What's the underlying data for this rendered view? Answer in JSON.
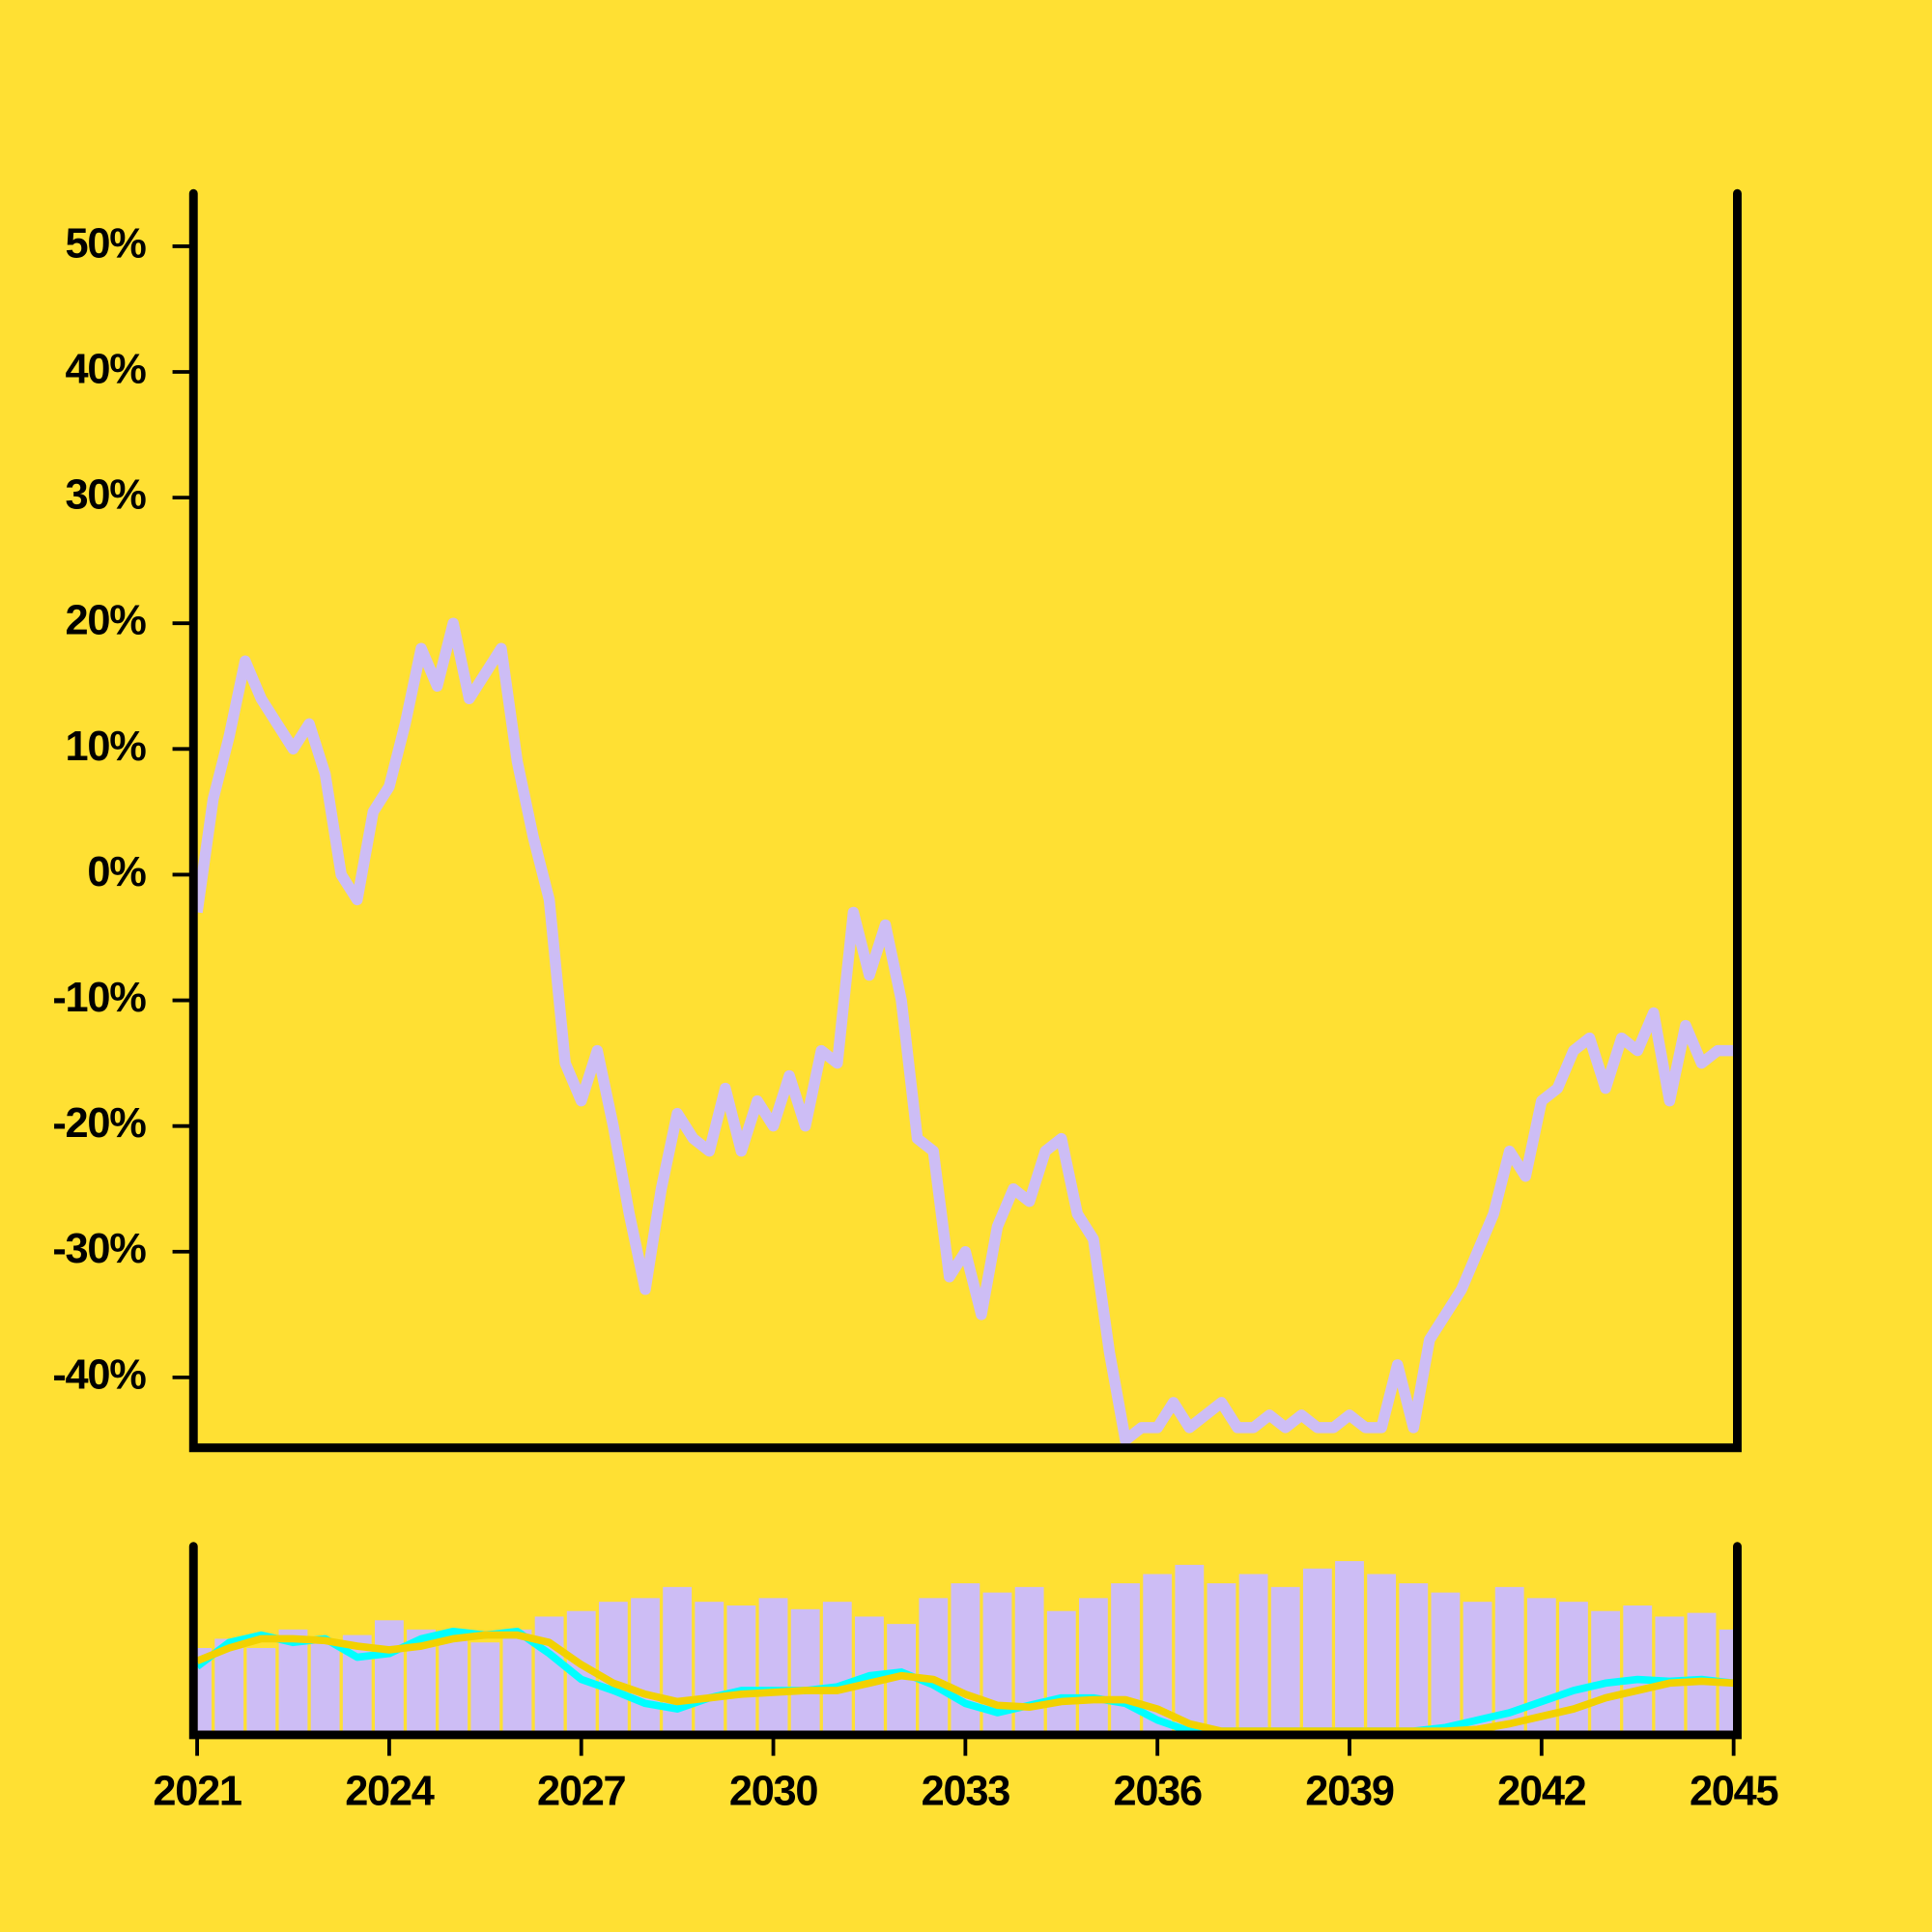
{
  "chart_data": [
    {
      "type": "line",
      "xlim": [
        2021,
        2045
      ],
      "ylim": [
        -45.6,
        54.2
      ],
      "yticks": [
        {
          "value": 50,
          "label": "50%"
        },
        {
          "value": 40,
          "label": "40%"
        },
        {
          "value": 30,
          "label": "30%"
        },
        {
          "value": 20,
          "label": "20%"
        },
        {
          "value": 10,
          "label": "10%"
        },
        {
          "value": 0,
          "label": "0%"
        },
        {
          "value": -10,
          "label": "-10%"
        },
        {
          "value": -20,
          "label": "-20%"
        },
        {
          "value": -30,
          "label": "-30%"
        },
        {
          "value": -40,
          "label": "-40%"
        }
      ],
      "x": [
        2021.0,
        2021.25,
        2021.5,
        2021.75,
        2022.0,
        2022.25,
        2022.5,
        2022.75,
        2023.0,
        2023.25,
        2023.5,
        2023.75,
        2024.0,
        2024.25,
        2024.5,
        2024.75,
        2025.0,
        2025.25,
        2025.5,
        2025.75,
        2026.0,
        2026.25,
        2026.5,
        2026.75,
        2027.0,
        2027.25,
        2027.5,
        2027.75,
        2028.0,
        2028.25,
        2028.5,
        2028.75,
        2029.0,
        2029.25,
        2029.5,
        2029.75,
        2030.0,
        2030.25,
        2030.5,
        2030.75,
        2031.0,
        2031.25,
        2031.5,
        2031.75,
        2032.0,
        2032.25,
        2032.5,
        2032.75,
        2033.0,
        2033.25,
        2033.5,
        2033.75,
        2034.0,
        2034.25,
        2034.5,
        2034.75,
        2035.0,
        2035.25,
        2035.5,
        2035.75,
        2036.0,
        2036.25,
        2036.5,
        2036.75,
        2037.0,
        2037.25,
        2037.5,
        2037.75,
        2038.0,
        2038.25,
        2038.5,
        2038.75,
        2039.0,
        2039.25,
        2039.5,
        2039.75,
        2040.0,
        2040.25,
        2040.5,
        2040.75,
        2041.0,
        2041.25,
        2041.5,
        2041.75,
        2042.0,
        2042.25,
        2042.5,
        2042.75,
        2043.0,
        2043.25,
        2043.5,
        2043.75,
        2044.0,
        2044.25,
        2044.5,
        2044.75,
        2045.0
      ],
      "series": [
        {
          "color": "#CDBDF5",
          "values": [
            -3,
            6,
            11,
            17,
            14,
            12,
            10,
            12,
            8,
            0,
            -2,
            5,
            7,
            12,
            18,
            15,
            20,
            14,
            16,
            18,
            9,
            3,
            -2,
            -15,
            -18,
            -14,
            -20,
            -27,
            -33,
            -25,
            -19,
            -21,
            -22,
            -17,
            -22,
            -18,
            -20,
            -16,
            -20,
            -14,
            -15,
            -3,
            -8,
            -4,
            -10,
            -21,
            -22,
            -32,
            -30,
            -35,
            -28,
            -25,
            -26,
            -22,
            -21,
            -27,
            -29,
            -38,
            -45,
            -44,
            -44,
            -42,
            -44,
            -43,
            -42,
            -44,
            -44,
            -43,
            -44,
            -43,
            -44,
            -44,
            -43,
            -44,
            -44,
            -39,
            -44,
            -37,
            -35,
            -33,
            -30,
            -27,
            -22,
            -24,
            -18,
            -17,
            -14,
            -13,
            -17,
            -13,
            -14,
            -11,
            -18,
            -12,
            -15,
            -14,
            -14
          ]
        }
      ]
    },
    {
      "type": "bar",
      "xlim": [
        2021,
        2045
      ],
      "ylim": [
        0,
        100
      ],
      "xticks": [
        2021,
        2024,
        2027,
        2030,
        2033,
        2036,
        2039,
        2042,
        2045
      ],
      "x": [
        2021.0,
        2021.5,
        2022.0,
        2022.5,
        2023.0,
        2023.5,
        2024.0,
        2024.5,
        2025.0,
        2025.5,
        2026.0,
        2026.5,
        2027.0,
        2027.5,
        2028.0,
        2028.5,
        2029.0,
        2029.5,
        2030.0,
        2030.5,
        2031.0,
        2031.5,
        2032.0,
        2032.5,
        2033.0,
        2033.5,
        2034.0,
        2034.5,
        2035.0,
        2035.5,
        2036.0,
        2036.5,
        2037.0,
        2037.5,
        2038.0,
        2038.5,
        2039.0,
        2039.5,
        2040.0,
        2040.5,
        2041.0,
        2041.5,
        2042.0,
        2042.5,
        2043.0,
        2043.5,
        2044.0,
        2044.5,
        2045.0
      ],
      "series": [
        {
          "type": "bar",
          "color": "#CDBDF5",
          "values": [
            45,
            50,
            45,
            55,
            48,
            52,
            60,
            55,
            50,
            48,
            55,
            62,
            65,
            70,
            72,
            78,
            70,
            68,
            72,
            66,
            70,
            62,
            58,
            72,
            80,
            75,
            78,
            65,
            72,
            80,
            85,
            90,
            80,
            85,
            78,
            88,
            92,
            85,
            80,
            75,
            70,
            78,
            72,
            70,
            65,
            68,
            62,
            64,
            55
          ]
        },
        {
          "type": "line",
          "color": "#00FFFF",
          "values": [
            35,
            48,
            52,
            48,
            50,
            40,
            42,
            50,
            54,
            52,
            54,
            42,
            28,
            22,
            15,
            12,
            18,
            22,
            22,
            22,
            24,
            30,
            32,
            25,
            15,
            10,
            14,
            18,
            18,
            15,
            6,
            0,
            0,
            0,
            0,
            0,
            0,
            0,
            0,
            2,
            6,
            10,
            16,
            22,
            26,
            28,
            27,
            28,
            26
          ]
        },
        {
          "type": "line",
          "color": "#F2D100",
          "values": [
            38,
            45,
            50,
            50,
            49,
            46,
            44,
            46,
            50,
            52,
            52,
            48,
            36,
            26,
            20,
            16,
            18,
            20,
            21,
            22,
            22,
            26,
            30,
            28,
            20,
            14,
            13,
            16,
            17,
            17,
            12,
            4,
            0,
            0,
            0,
            0,
            0,
            0,
            0,
            0,
            1,
            4,
            8,
            12,
            18,
            22,
            26,
            27,
            26
          ]
        }
      ]
    }
  ]
}
